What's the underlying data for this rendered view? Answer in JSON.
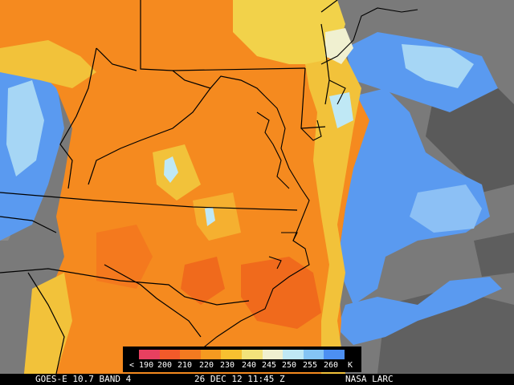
{
  "caption": {
    "satellite": "GOES-E 10.7 BAND 4",
    "datetime": "26 DEC 12 11:45 Z",
    "source": "NASA LARC"
  },
  "legend": {
    "labels": [
      "< 190",
      "200",
      "210",
      "220",
      "230",
      "240",
      "245",
      "250",
      "255",
      "260",
      "K"
    ],
    "colors": [
      "#e84060",
      "#f25a2a",
      "#f37a20",
      "#f59a20",
      "#f7c030",
      "#f3e27a",
      "#f0f0d0",
      "#bfe8f5",
      "#84c4f5",
      "#4c8ff2"
    ]
  },
  "palette": {
    "cold_cloud_orange": "#f58a1f",
    "cloud_yellow": "#f2d24a",
    "cool_blue": "#5a9af0",
    "light_blue": "#a6d6f5",
    "clear_gray": "#7d7d7d",
    "dark_gray": "#555555",
    "borders": "#000000"
  }
}
